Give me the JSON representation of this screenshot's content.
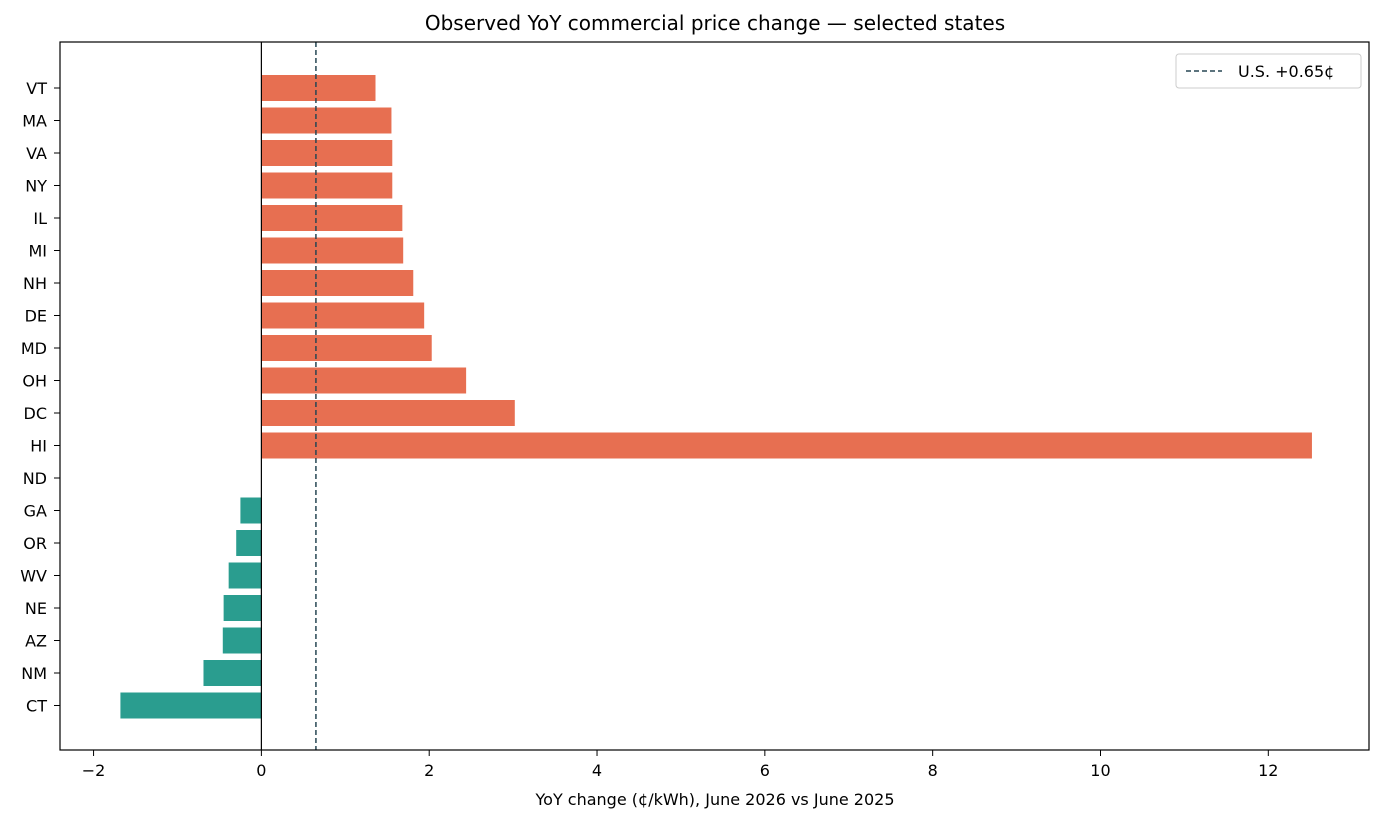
{
  "chart_data": {
    "type": "bar",
    "orientation": "horizontal",
    "title": "Observed YoY commercial price change — selected states",
    "xlabel": "YoY change (¢/kWh), June 2026 vs June 2025",
    "ylabel": "",
    "xlim": [
      -2.4,
      13.2
    ],
    "xticks": [
      -2,
      0,
      2,
      4,
      6,
      8,
      10,
      12
    ],
    "xtick_labels": [
      "−2",
      "0",
      "2",
      "4",
      "6",
      "8",
      "10",
      "12"
    ],
    "categories": [
      "VT",
      "MA",
      "VA",
      "NY",
      "IL",
      "MI",
      "NH",
      "DE",
      "MD",
      "OH",
      "DC",
      "HI",
      "ND",
      "GA",
      "OR",
      "WV",
      "NE",
      "AZ",
      "NM",
      "CT"
    ],
    "values": [
      1.36,
      1.55,
      1.56,
      1.56,
      1.68,
      1.69,
      1.81,
      1.94,
      2.03,
      2.44,
      3.02,
      12.52,
      0.0,
      -0.25,
      -0.3,
      -0.39,
      -0.45,
      -0.46,
      -0.69,
      -1.68
    ],
    "positive_color": "#e76f51",
    "negative_color": "#2a9d8f",
    "reference_line": {
      "value": 0.65,
      "label": "U.S. +0.65¢",
      "color": "#264653",
      "style": "dashed"
    },
    "zero_line": true,
    "grid": false,
    "legend_position": "top-right"
  }
}
